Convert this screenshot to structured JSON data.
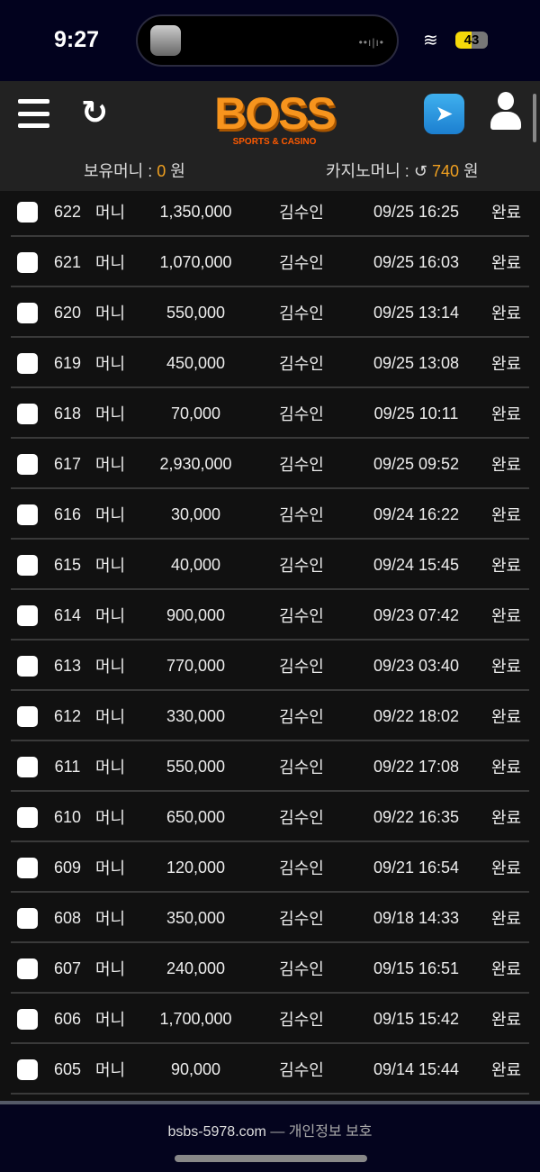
{
  "status": {
    "time": "9:27",
    "battery": "43",
    "wave": "••ı|ı•"
  },
  "header": {
    "logo": "BOSS",
    "logo_sub": "SPORTS & CASINO",
    "refresh_glyph": "↻",
    "telegram_glyph": "➤",
    "money_label": "보유머니 :",
    "money_value": "0",
    "money_unit": "원",
    "casino_label": "카지노머니 :",
    "casino_icon": "↺",
    "casino_value": "740",
    "casino_unit": "원"
  },
  "rows": [
    {
      "id": "622",
      "type": "머니",
      "amount": "1,350,000",
      "name": "김수인",
      "date": "09/25 16:25",
      "status": "완료"
    },
    {
      "id": "621",
      "type": "머니",
      "amount": "1,070,000",
      "name": "김수인",
      "date": "09/25 16:03",
      "status": "완료"
    },
    {
      "id": "620",
      "type": "머니",
      "amount": "550,000",
      "name": "김수인",
      "date": "09/25 13:14",
      "status": "완료"
    },
    {
      "id": "619",
      "type": "머니",
      "amount": "450,000",
      "name": "김수인",
      "date": "09/25 13:08",
      "status": "완료"
    },
    {
      "id": "618",
      "type": "머니",
      "amount": "70,000",
      "name": "김수인",
      "date": "09/25 10:11",
      "status": "완료"
    },
    {
      "id": "617",
      "type": "머니",
      "amount": "2,930,000",
      "name": "김수인",
      "date": "09/25 09:52",
      "status": "완료"
    },
    {
      "id": "616",
      "type": "머니",
      "amount": "30,000",
      "name": "김수인",
      "date": "09/24 16:22",
      "status": "완료"
    },
    {
      "id": "615",
      "type": "머니",
      "amount": "40,000",
      "name": "김수인",
      "date": "09/24 15:45",
      "status": "완료"
    },
    {
      "id": "614",
      "type": "머니",
      "amount": "900,000",
      "name": "김수인",
      "date": "09/23 07:42",
      "status": "완료"
    },
    {
      "id": "613",
      "type": "머니",
      "amount": "770,000",
      "name": "김수인",
      "date": "09/23 03:40",
      "status": "완료"
    },
    {
      "id": "612",
      "type": "머니",
      "amount": "330,000",
      "name": "김수인",
      "date": "09/22 18:02",
      "status": "완료"
    },
    {
      "id": "611",
      "type": "머니",
      "amount": "550,000",
      "name": "김수인",
      "date": "09/22 17:08",
      "status": "완료"
    },
    {
      "id": "610",
      "type": "머니",
      "amount": "650,000",
      "name": "김수인",
      "date": "09/22 16:35",
      "status": "완료"
    },
    {
      "id": "609",
      "type": "머니",
      "amount": "120,000",
      "name": "김수인",
      "date": "09/21 16:54",
      "status": "완료"
    },
    {
      "id": "608",
      "type": "머니",
      "amount": "350,000",
      "name": "김수인",
      "date": "09/18 14:33",
      "status": "완료"
    },
    {
      "id": "607",
      "type": "머니",
      "amount": "240,000",
      "name": "김수인",
      "date": "09/15 16:51",
      "status": "완료"
    },
    {
      "id": "606",
      "type": "머니",
      "amount": "1,700,000",
      "name": "김수인",
      "date": "09/15 15:42",
      "status": "완료"
    },
    {
      "id": "605",
      "type": "머니",
      "amount": "90,000",
      "name": "김수인",
      "date": "09/14 15:44",
      "status": "완료"
    }
  ],
  "footer": {
    "domain": "bsbs-5978.com",
    "sep": "—",
    "privacy": "개인정보 보호"
  }
}
